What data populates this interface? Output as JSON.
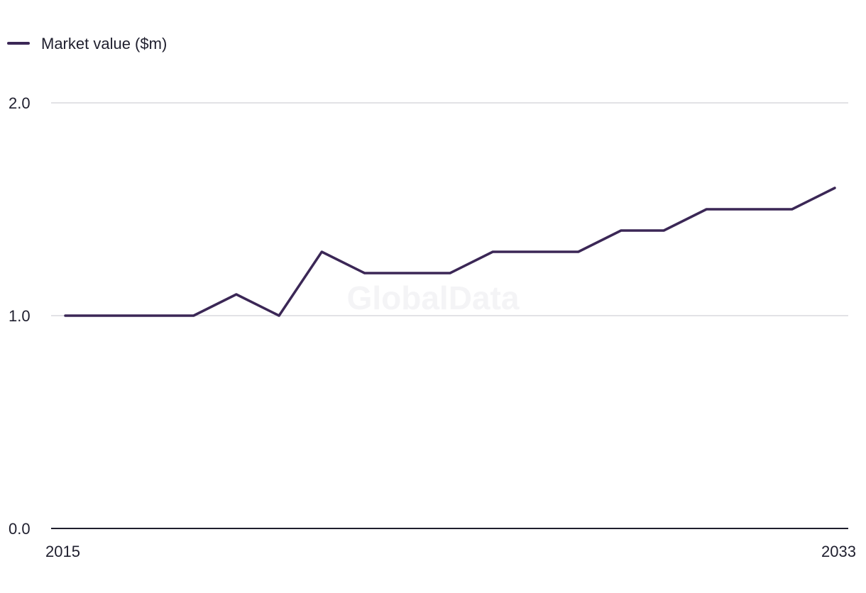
{
  "chart_data": {
    "type": "line",
    "title": "",
    "xlabel": "",
    "ylabel": "",
    "x": [
      2015,
      2016,
      2017,
      2018,
      2019,
      2020,
      2021,
      2022,
      2023,
      2024,
      2025,
      2026,
      2027,
      2028,
      2029,
      2030,
      2031,
      2032,
      2033
    ],
    "series": [
      {
        "name": "Market value ($m)",
        "color": "#3b2756",
        "values": [
          1.0,
          1.0,
          1.0,
          1.0,
          1.1,
          1.0,
          1.3,
          1.2,
          1.2,
          1.2,
          1.3,
          1.3,
          1.3,
          1.4,
          1.4,
          1.5,
          1.5,
          1.5,
          1.6
        ]
      }
    ],
    "ylim": [
      0.0,
      2.0
    ],
    "y_ticks": [
      "0.0",
      "1.0",
      "2.0"
    ],
    "x_tick_labels": [
      "2015",
      "2033"
    ],
    "grid": true,
    "legend_position": "top-left",
    "watermark": "GlobalData",
    "colors": {
      "line": "#3b2756",
      "grid": "#d9d9de",
      "axis": "#1f1f2e"
    }
  }
}
